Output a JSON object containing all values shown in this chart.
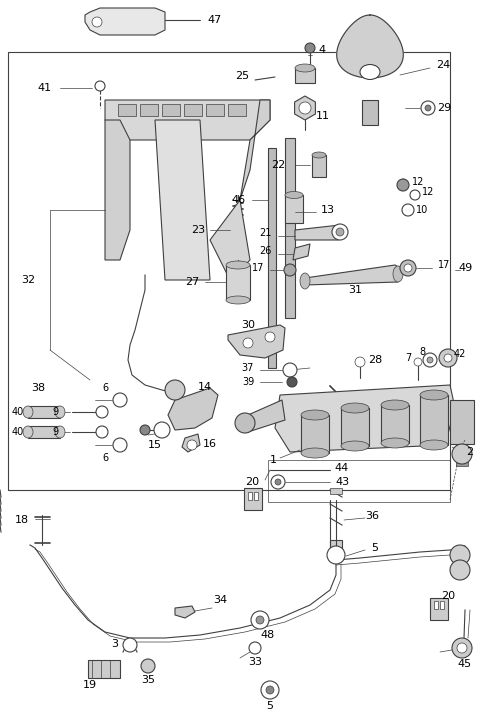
{
  "bg_color": "#ffffff",
  "line_color": "#404040",
  "label_color": "#000000",
  "fig_w": 4.8,
  "fig_h": 7.28,
  "dpi": 100,
  "pw": 480,
  "ph": 728
}
